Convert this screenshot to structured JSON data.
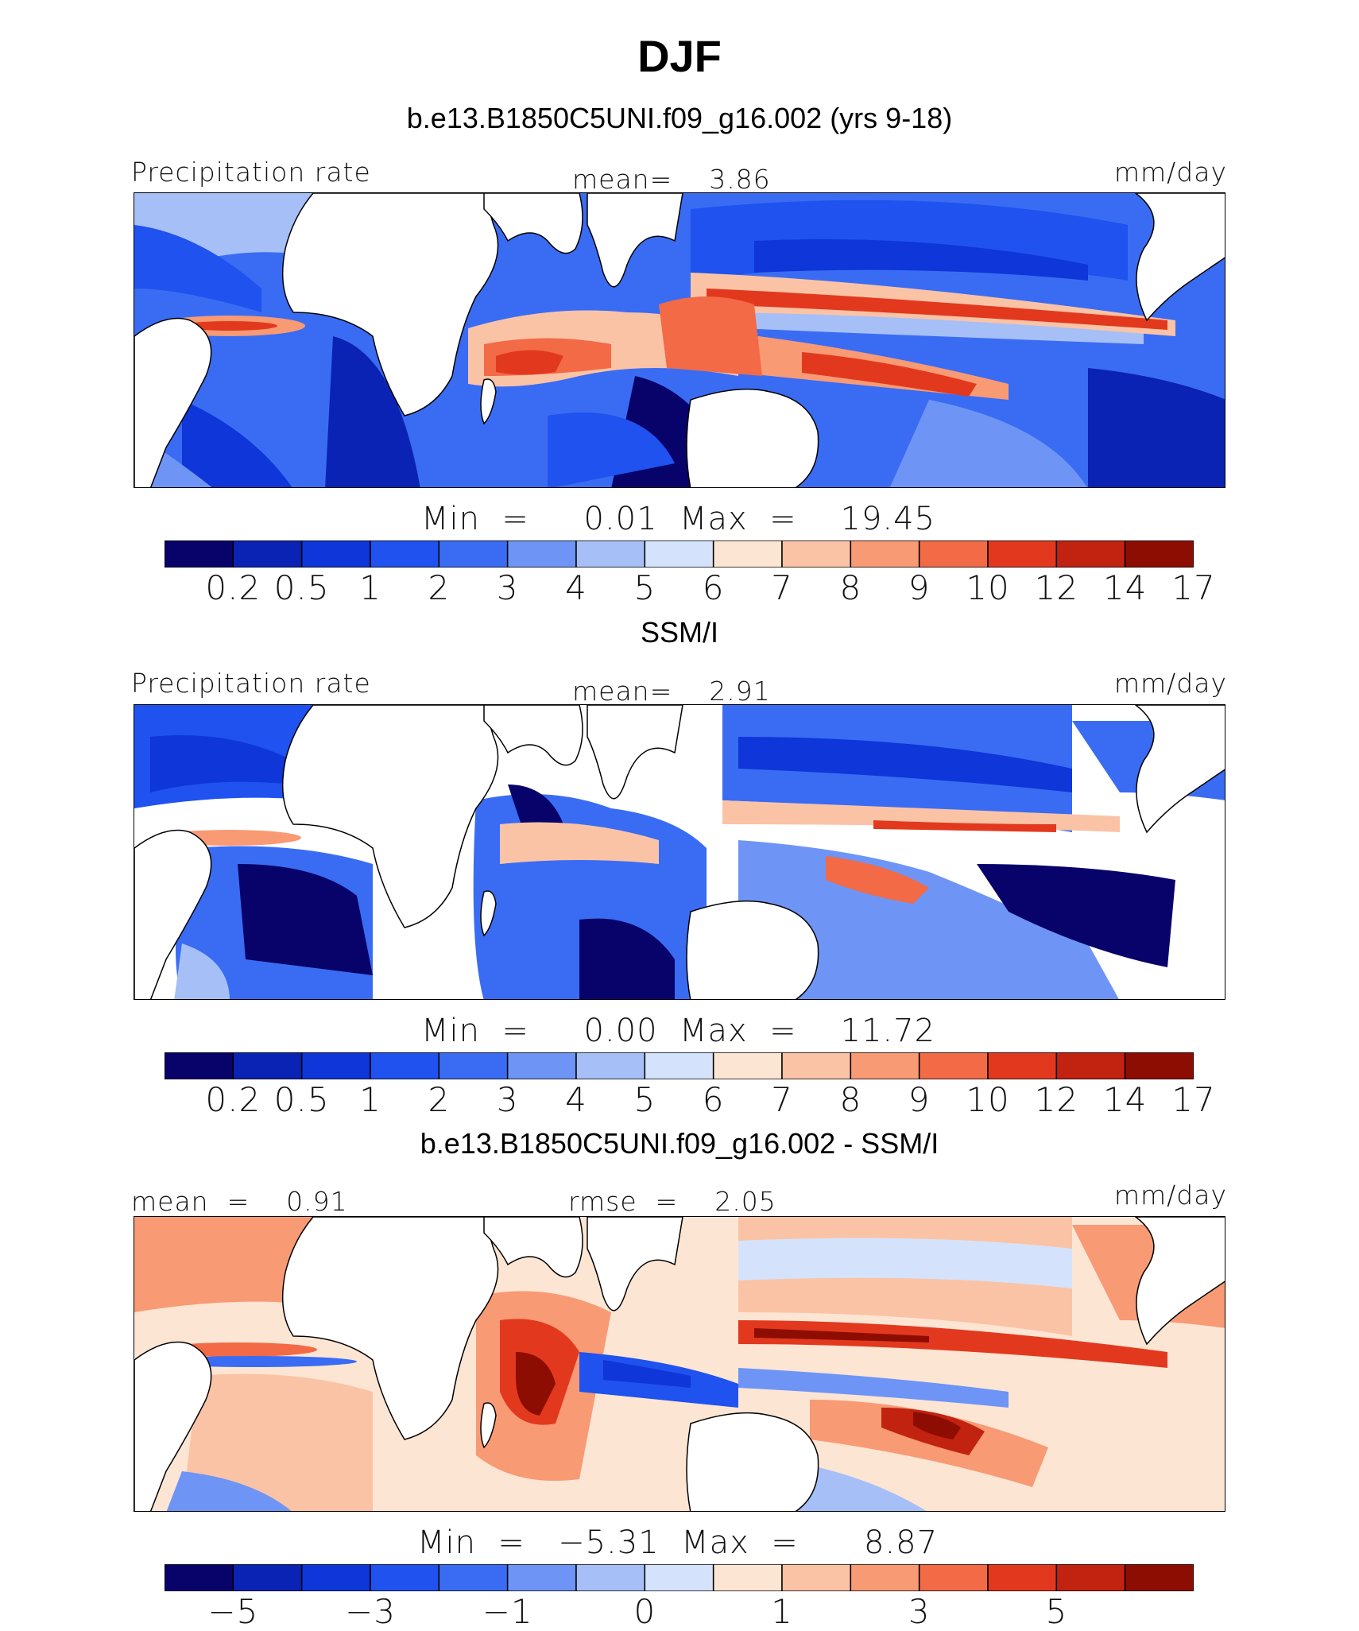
{
  "title": "DJF",
  "colors": {
    "pr": [
      "#08036b",
      "#0a23b5",
      "#0e36d8",
      "#1f52ee",
      "#3a6cf3",
      "#6e95f5",
      "#a6bff7",
      "#d4e3fb",
      "#fde5d4",
      "#fbc3a6",
      "#f89a74",
      "#f26a46",
      "#e2391e",
      "#c22210",
      "#8e0d03"
    ],
    "diff": [
      "#08036b",
      "#0a23b5",
      "#0e36d8",
      "#1f52ee",
      "#3a6cf3",
      "#6e95f5",
      "#a6bff7",
      "#d4e3fb",
      "#fde5d4",
      "#fbc3a6",
      "#f89a74",
      "#f26a46",
      "#e2391e",
      "#c22210",
      "#8e0d03"
    ],
    "land": "#ffffff",
    "coast": "#000000"
  },
  "panels": [
    {
      "title": "b.e13.B1850C5UNI.f09_g16.002 (yrs 9-18)",
      "left_label": "Precipitation rate",
      "center_label": "mean=    3.86",
      "right_label": "mm/day",
      "minmax": "Min  =     0.01  Max  =    19.45",
      "ticks": [
        "0.2",
        "0.5",
        "1",
        "2",
        "3",
        "4",
        "5",
        "6",
        "7",
        "8",
        "9",
        "10",
        "12",
        "14",
        "17"
      ]
    },
    {
      "title": "SSM/I",
      "left_label": "Precipitation rate",
      "center_label": "mean=    2.91",
      "right_label": "mm/day",
      "minmax": "Min  =     0.00  Max  =    11.72",
      "ticks": [
        "0.2",
        "0.5",
        "1",
        "2",
        "3",
        "4",
        "5",
        "6",
        "7",
        "8",
        "9",
        "10",
        "12",
        "14",
        "17"
      ]
    },
    {
      "title": "b.e13.B1850C5UNI.f09_g16.002 - SSM/I",
      "left_label": "mean  =    0.91",
      "center_label": "rmse  =    2.05",
      "right_label": "mm/day",
      "minmax": "Min  =   −5.31  Max  =      8.87",
      "ticks": [
        "−5",
        "−3",
        "−1",
        "0",
        "1",
        "3",
        "5"
      ]
    }
  ]
}
